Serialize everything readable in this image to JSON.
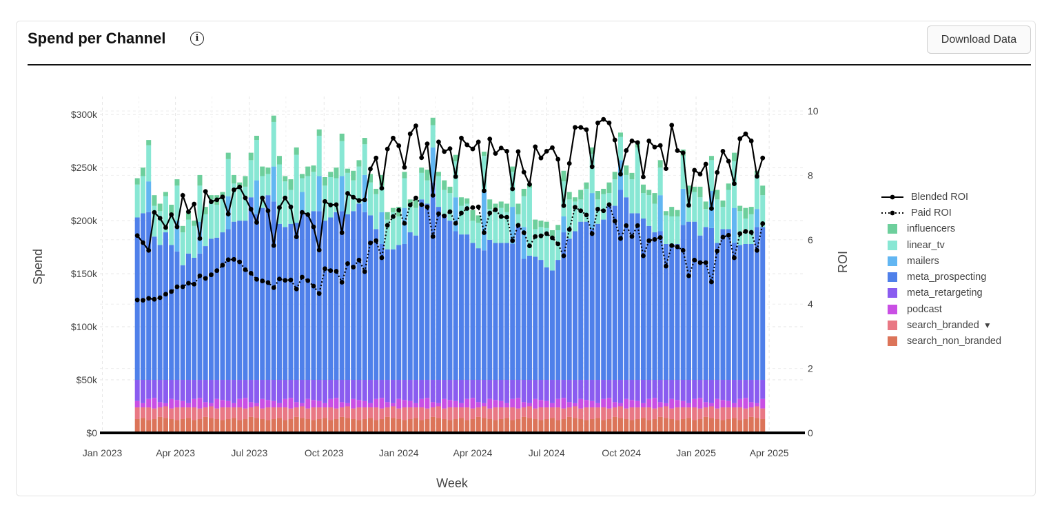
{
  "header": {
    "title": "Spend per Channel",
    "info_icon": "i",
    "download_label": "Download Data"
  },
  "chart_data": {
    "type": "bar",
    "barmode": "stack",
    "x_start": "2023-02-13",
    "x_step_days": 7,
    "xlim": [
      "2022-12-29",
      "2025-05-15"
    ],
    "xlabel": "Week",
    "ylabel": "Spend",
    "y2label": "ROI",
    "ylim": [
      0,
      317
    ],
    "y2lim": [
      0,
      10.45
    ],
    "x_ticks": [
      {
        "date": "2023-01-01",
        "label": "Jan 2023"
      },
      {
        "date": "2023-04-01",
        "label": "Apr 2023"
      },
      {
        "date": "2023-07-01",
        "label": "Jul 2023"
      },
      {
        "date": "2023-10-01",
        "label": "Oct 2023"
      },
      {
        "date": "2024-01-01",
        "label": "Jan 2024"
      },
      {
        "date": "2024-04-01",
        "label": "Apr 2024"
      },
      {
        "date": "2024-07-01",
        "label": "Jul 2024"
      },
      {
        "date": "2024-10-01",
        "label": "Oct 2024"
      },
      {
        "date": "2025-01-01",
        "label": "Jan 2025"
      },
      {
        "date": "2025-04-01",
        "label": "Apr 2025"
      }
    ],
    "y_ticks": [
      {
        "v": 0,
        "label": "$0"
      },
      {
        "v": 50,
        "label": "$50k"
      },
      {
        "v": 100,
        "label": "$100k"
      },
      {
        "v": 150,
        "label": "$150k"
      },
      {
        "v": 200,
        "label": "$200k"
      },
      {
        "v": 250,
        "label": "$250k"
      },
      {
        "v": 300,
        "label": "$300k"
      }
    ],
    "y2_ticks": [
      {
        "v": 0,
        "label": "0"
      },
      {
        "v": 2,
        "label": "2"
      },
      {
        "v": 4,
        "label": "4"
      },
      {
        "v": 6,
        "label": "6"
      },
      {
        "v": 8,
        "label": "8"
      },
      {
        "v": 10,
        "label": "10"
      }
    ],
    "units": "thousands USD",
    "legend_position": "right",
    "series": [
      {
        "name": "influencers",
        "color": "#6dcf9c",
        "values": [
          6,
          8,
          5,
          10,
          7,
          4,
          9,
          6,
          6,
          8,
          5,
          10,
          7,
          4,
          9,
          6,
          6,
          8,
          5,
          10,
          7,
          4,
          9,
          6,
          6,
          8,
          5,
          10,
          7,
          4,
          9,
          6,
          6,
          8,
          5,
          10,
          7,
          4,
          9,
          6,
          6,
          8,
          5,
          10,
          7,
          4,
          9,
          6,
          6,
          8,
          5,
          10,
          7,
          4,
          9,
          6,
          6,
          8,
          5,
          10,
          7,
          4,
          9,
          6,
          6,
          8,
          5,
          10,
          7,
          4,
          9,
          6,
          6,
          8,
          5,
          10,
          7,
          4,
          9,
          6,
          6,
          8,
          5,
          10,
          7,
          4,
          9,
          6,
          6,
          8,
          5,
          10,
          7,
          4,
          9,
          6,
          6,
          8,
          5,
          10,
          7,
          4,
          9,
          6,
          6,
          8,
          5,
          10,
          7,
          4,
          9
        ]
      },
      {
        "name": "linear_tv",
        "color": "#88e7d4",
        "values": [
          31,
          35,
          34,
          29,
          32,
          34,
          29,
          33,
          31,
          32,
          30,
          34,
          30,
          37,
          31,
          32,
          35,
          36,
          31,
          32,
          35,
          38,
          30,
          20,
          42,
          56,
          43,
          32,
          64,
          13,
          36,
          37,
          38,
          33,
          38,
          32,
          33,
          39,
          29,
          35,
          29,
          31,
          33,
          25,
          28,
          35,
          27,
          28,
          25,
          26,
          25,
          22,
          21,
          29,
          23,
          26,
          34,
          27,
          29,
          21,
          24,
          33,
          29,
          31,
          33,
          29,
          33,
          11,
          29,
          64,
          26,
          31,
          37,
          30,
          28,
          33,
          37,
          28,
          21,
          31,
          37,
          23,
          24,
          11,
          25,
          22,
          21,
          32,
          62,
          24,
          29,
          27,
          26,
          27,
          26,
          26,
          31,
          26,
          28,
          36,
          17,
          29,
          41,
          21,
          37,
          44,
          32,
          24,
          28,
          32,
          30
        ]
      },
      {
        "name": "mailers",
        "color": "#62b6f2",
        "values": [
          0,
          0,
          29,
          0,
          0,
          0,
          0,
          29,
          0,
          0,
          0,
          30,
          0,
          0,
          0,
          0,
          31,
          0,
          0,
          0,
          0,
          32,
          0,
          0,
          33,
          0,
          0,
          0,
          0,
          18,
          0,
          0,
          33,
          0,
          0,
          0,
          33,
          0,
          0,
          0,
          35,
          0,
          0,
          30,
          0,
          0,
          0,
          34,
          0,
          0,
          0,
          0,
          33,
          0,
          0,
          0,
          32,
          0,
          0,
          0,
          0,
          56,
          0,
          0,
          0,
          0,
          35,
          0,
          30,
          0,
          0,
          0,
          0,
          0,
          0,
          15,
          0,
          0,
          0,
          0,
          34,
          0,
          0,
          0,
          0,
          28,
          0,
          0,
          0,
          0,
          0,
          0,
          34,
          0,
          0,
          0,
          34,
          0,
          0,
          0,
          0,
          35,
          0,
          0,
          0,
          33,
          0,
          0,
          0,
          17,
          0
        ]
      },
      {
        "name": "meta_prospecting",
        "color": "#4f80ea",
        "values": [
          153,
          157,
          158,
          135,
          127,
          139,
          127,
          121,
          108,
          119,
          115,
          119,
          126,
          133,
          134,
          139,
          142,
          149,
          150,
          150,
          172,
          156,
          162,
          174,
          168,
          147,
          144,
          147,
          148,
          159,
          156,
          159,
          159,
          150,
          153,
          158,
          159,
          156,
          159,
          166,
          158,
          155,
          142,
          128,
          123,
          123,
          127,
          128,
          139,
          136,
          170,
          166,
          186,
          163,
          156,
          150,
          140,
          137,
          137,
          129,
          124,
          122,
          132,
          129,
          129,
          129,
          128,
          145,
          114,
          117,
          116,
          113,
          106,
          103,
          113,
          139,
          133,
          140,
          149,
          149,
          142,
          147,
          151,
          165,
          164,
          179,
          172,
          157,
          157,
          152,
          145,
          139,
          140,
          128,
          128,
          128,
          146,
          149,
          149,
          136,
          144,
          143,
          129,
          142,
          142,
          129,
          127,
          128,
          128,
          144,
          144
        ]
      },
      {
        "name": "meta_retargeting",
        "color": "#8a5cf0",
        "values": [
          20,
          22,
          18,
          17,
          21,
          22,
          18,
          19,
          20,
          22,
          18,
          17,
          21,
          22,
          18,
          19,
          20,
          22,
          18,
          17,
          21,
          22,
          18,
          19,
          20,
          22,
          18,
          17,
          21,
          22,
          18,
          19,
          20,
          22,
          18,
          17,
          21,
          22,
          18,
          19,
          20,
          22,
          18,
          17,
          21,
          22,
          18,
          19,
          20,
          22,
          18,
          17,
          21,
          22,
          18,
          19,
          20,
          22,
          18,
          17,
          21,
          22,
          18,
          19,
          20,
          22,
          18,
          17,
          21,
          22,
          18,
          19,
          20,
          22,
          18,
          17,
          21,
          22,
          18,
          19,
          20,
          22,
          18,
          17,
          21,
          22,
          18,
          19,
          20,
          22,
          18,
          17,
          21,
          22,
          18,
          19,
          20,
          22,
          18,
          17,
          21,
          22,
          18,
          19,
          20,
          22,
          18,
          17,
          21,
          22,
          18
        ]
      },
      {
        "name": "podcast",
        "color": "#c94fe4",
        "values": [
          6,
          4,
          8,
          10,
          5,
          3,
          9,
          7,
          6,
          4,
          8,
          10,
          5,
          3,
          9,
          7,
          6,
          4,
          8,
          10,
          5,
          3,
          9,
          7,
          6,
          4,
          8,
          10,
          5,
          3,
          9,
          7,
          6,
          4,
          8,
          10,
          5,
          3,
          9,
          7,
          6,
          4,
          8,
          10,
          5,
          3,
          9,
          7,
          6,
          4,
          8,
          10,
          5,
          3,
          9,
          7,
          6,
          4,
          8,
          10,
          5,
          3,
          9,
          7,
          6,
          4,
          8,
          10,
          5,
          3,
          9,
          7,
          6,
          4,
          8,
          10,
          5,
          3,
          9,
          7,
          6,
          4,
          8,
          10,
          5,
          3,
          9,
          7,
          6,
          4,
          8,
          10,
          5,
          3,
          9,
          7,
          6,
          4,
          8,
          10,
          5,
          3,
          9,
          7,
          6,
          4,
          8,
          10,
          5,
          3,
          9
        ]
      },
      {
        "name": "search_branded",
        "color": "#e97884",
        "legend_suffix": "▼",
        "values": [
          11,
          10,
          12,
          10,
          9,
          11,
          10,
          12,
          11,
          10,
          12,
          10,
          9,
          11,
          10,
          12,
          11,
          10,
          12,
          10,
          9,
          11,
          10,
          12,
          11,
          10,
          12,
          10,
          9,
          11,
          10,
          12,
          11,
          10,
          12,
          10,
          9,
          11,
          10,
          12,
          11,
          10,
          12,
          10,
          9,
          11,
          10,
          12,
          11,
          10,
          12,
          10,
          9,
          11,
          10,
          12,
          11,
          10,
          12,
          10,
          9,
          11,
          10,
          12,
          11,
          10,
          12,
          10,
          9,
          11,
          10,
          12,
          11,
          10,
          12,
          10,
          9,
          11,
          10,
          12,
          11,
          10,
          12,
          10,
          9,
          11,
          10,
          12,
          11,
          10,
          12,
          10,
          9,
          11,
          10,
          12,
          11,
          10,
          12,
          10,
          9,
          11,
          10,
          12,
          11,
          10,
          12,
          10,
          9,
          11,
          10
        ]
      },
      {
        "name": "search_non_branded",
        "color": "#dc7459",
        "values": [
          13,
          14,
          12,
          13,
          15,
          14,
          13,
          12,
          13,
          14,
          12,
          13,
          15,
          14,
          13,
          12,
          13,
          14,
          12,
          13,
          15,
          14,
          13,
          12,
          13,
          14,
          12,
          13,
          15,
          14,
          13,
          12,
          13,
          14,
          12,
          13,
          15,
          14,
          13,
          12,
          13,
          14,
          12,
          13,
          15,
          14,
          13,
          12,
          13,
          14,
          12,
          13,
          15,
          14,
          13,
          12,
          13,
          14,
          12,
          13,
          15,
          14,
          13,
          12,
          13,
          14,
          12,
          13,
          15,
          14,
          13,
          12,
          13,
          14,
          12,
          13,
          15,
          14,
          13,
          12,
          13,
          14,
          12,
          13,
          15,
          14,
          13,
          12,
          13,
          14,
          12,
          13,
          15,
          14,
          13,
          12,
          13,
          14,
          12,
          13,
          15,
          14,
          13,
          12,
          13,
          14,
          12,
          13,
          15,
          14,
          13
        ]
      }
    ],
    "lines": [
      {
        "name": "Blended ROI",
        "axis": "y2",
        "dash": "solid",
        "values": [
          6.13,
          5.91,
          5.67,
          6.85,
          6.67,
          6.38,
          6.78,
          6.4,
          7.38,
          6.87,
          7.11,
          6.04,
          7.5,
          7.18,
          7.24,
          7.33,
          6.8,
          7.55,
          7.64,
          7.3,
          6.95,
          6.54,
          7.3,
          6.9,
          5.82,
          7.0,
          7.3,
          7.02,
          6.09,
          6.85,
          6.78,
          6.4,
          5.68,
          7.19,
          7.08,
          7.09,
          6.22,
          7.44,
          7.32,
          7.22,
          7.24,
          8.2,
          8.54,
          7.6,
          8.82,
          9.16,
          8.92,
          8.25,
          9.29,
          9.54,
          8.55,
          8.98,
          7.38,
          9.04,
          8.74,
          8.83,
          7.96,
          9.16,
          8.95,
          8.82,
          9.04,
          7.52,
          9.13,
          8.68,
          8.85,
          8.75,
          7.58,
          8.74,
          8.1,
          7.72,
          8.89,
          8.54,
          8.75,
          8.86,
          8.5,
          7.06,
          8.37,
          9.49,
          9.49,
          9.42,
          8.27,
          9.63,
          9.74,
          9.63,
          9.1,
          8.04,
          8.77,
          9.07,
          9.02,
          7.95,
          9.07,
          8.88,
          8.93,
          8.21,
          9.56,
          8.77,
          8.7,
          7.07,
          8.16,
          8.04,
          8.35,
          6.97,
          8.09,
          8.75,
          8.44,
          7.74,
          9.14,
          9.29,
          9.07,
          7.97,
          8.54
        ]
      },
      {
        "name": "Paid ROI",
        "axis": "y2",
        "dash": "dot",
        "values": [
          4.13,
          4.12,
          4.18,
          4.15,
          4.2,
          4.31,
          4.39,
          4.54,
          4.54,
          4.65,
          4.62,
          4.88,
          4.8,
          4.91,
          5.04,
          5.21,
          5.38,
          5.39,
          5.31,
          5.07,
          4.96,
          4.77,
          4.72,
          4.67,
          4.51,
          4.78,
          4.74,
          4.75,
          4.47,
          4.84,
          4.73,
          4.56,
          4.33,
          5.1,
          5.04,
          5.02,
          4.68,
          5.26,
          5.15,
          5.37,
          5.01,
          5.9,
          5.97,
          5.44,
          6.45,
          6.72,
          6.92,
          6.51,
          7.08,
          7.3,
          7.09,
          7.02,
          6.1,
          6.81,
          6.74,
          6.87,
          6.51,
          6.83,
          6.97,
          7.0,
          7.02,
          6.22,
          6.83,
          6.93,
          6.72,
          6.7,
          5.97,
          6.45,
          6.22,
          5.81,
          6.1,
          6.12,
          6.19,
          6.06,
          5.87,
          5.5,
          6.32,
          7.01,
          6.9,
          6.77,
          6.19,
          6.95,
          6.9,
          7.09,
          6.58,
          6.04,
          6.44,
          6.1,
          6.44,
          5.5,
          5.97,
          6.01,
          6.07,
          5.18,
          5.82,
          5.78,
          5.67,
          4.88,
          5.37,
          5.29,
          5.29,
          4.69,
          5.65,
          6.08,
          6.14,
          5.44,
          6.19,
          6.26,
          6.23,
          5.67,
          6.5
        ]
      }
    ]
  }
}
